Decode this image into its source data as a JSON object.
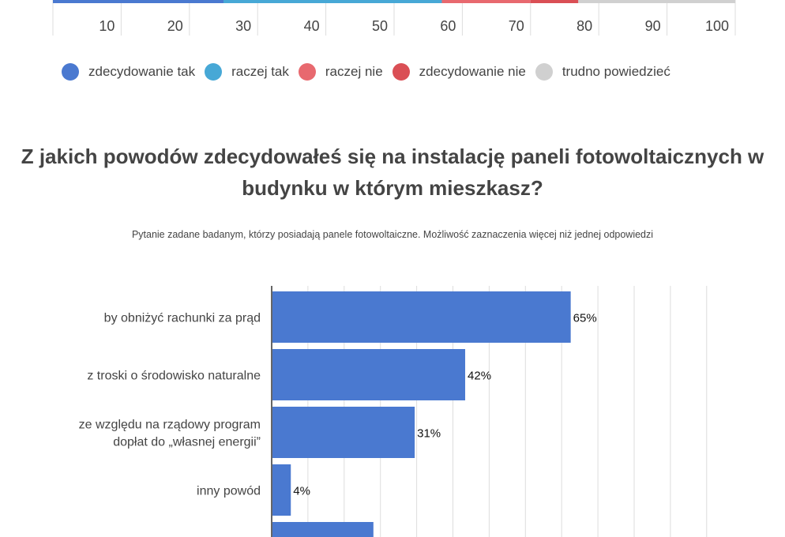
{
  "chart_data": [
    {
      "type": "bar",
      "orientation": "horizontal-stacked",
      "x_ticks": [
        "10",
        "20",
        "30",
        "40",
        "50",
        "60",
        "70",
        "80",
        "90",
        "100"
      ],
      "xlim": [
        0,
        100
      ],
      "grid": true,
      "series": [
        {
          "name": "zdecydowanie tak",
          "values": [
            25
          ],
          "color": "#4a79d0"
        },
        {
          "name": "raczej tak",
          "values": [
            32
          ],
          "color": "#47a8d6"
        },
        {
          "name": "raczej nie",
          "values": [
            13
          ],
          "color": "#e8696f"
        },
        {
          "name": "zdecydowanie nie",
          "values": [
            7
          ],
          "color": "#da4f55"
        },
        {
          "name": "trudno powiedzieć",
          "values": [
            23
          ],
          "color": "#d0d0d0"
        }
      ],
      "legend": "bottom"
    },
    {
      "type": "bar",
      "orientation": "horizontal",
      "title": "Z jakich powodów zdecydowałeś się na instalację paneli fotowoltaicznych w budynku w którym mieszkasz?",
      "subtitle": "Pytanie zadane badanym, którzy posiadają panele fotowoltaiczne. Możliwość zaznaczenia więcej niż jednej odpowiedzi",
      "categories": [
        [
          "by obniżyć rachunki za prąd"
        ],
        [
          "z troski o środowisko naturalne"
        ],
        [
          "ze względu na rządowy program",
          "dopłat do „własnej energii”"
        ],
        [
          "inny powód"
        ],
        [
          ""
        ]
      ],
      "values": [
        65,
        42,
        31,
        4,
        22
      ],
      "value_labels": [
        "65%",
        "42%",
        "31%",
        "4%",
        ""
      ],
      "xlim": [
        0,
        100
      ],
      "grid": true,
      "color": "#4a79d0"
    }
  ]
}
